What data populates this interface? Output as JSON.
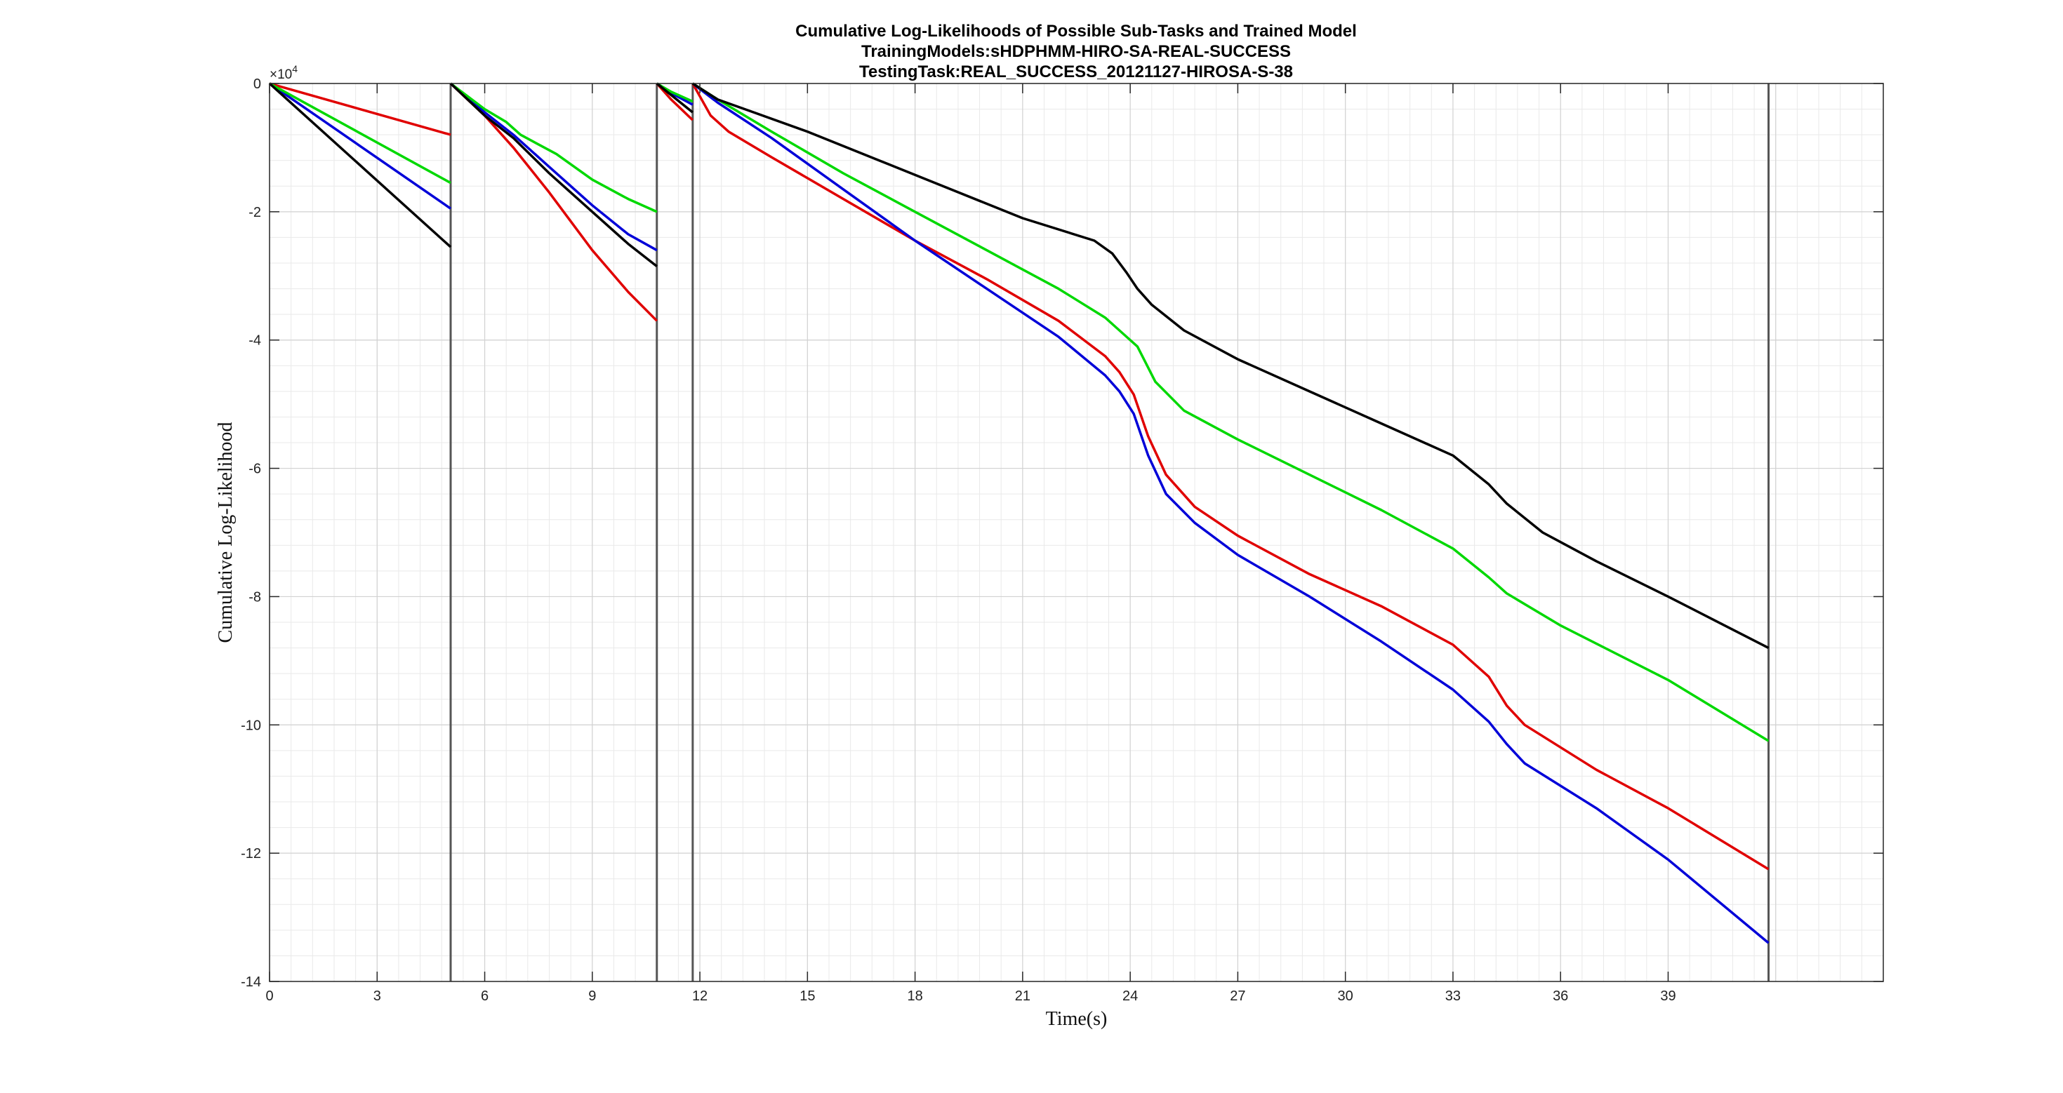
{
  "chart_data": {
    "type": "line",
    "title": [
      "Cumulative Log-Likelihoods of Possible Sub-Tasks and Trained Model",
      "TrainingModels:sHDPHMM-HIRO-SA-REAL-SUCCESS",
      "TestingTask:REAL_SUCCESS_20121127-HIROSA-S-38"
    ],
    "xlabel": "Time(s)",
    "ylabel": "Cumulative Log-Likelihood",
    "y_exponent_label": "×10",
    "y_exponent_power": "4",
    "xlim": [
      0,
      45
    ],
    "ylim": [
      -140000,
      0
    ],
    "x_ticks": [
      0,
      3,
      6,
      9,
      12,
      15,
      18,
      21,
      24,
      27,
      30,
      33,
      36,
      39
    ],
    "x_tick_labels": [
      "0",
      "3",
      "6",
      "9",
      "12",
      "15",
      "18",
      "21",
      "24",
      "27",
      "30",
      "33",
      "36",
      "39"
    ],
    "y_ticks": [
      0,
      -20000,
      -40000,
      -60000,
      -80000,
      -100000,
      -120000,
      -140000
    ],
    "y_tick_labels": [
      "0",
      "-2",
      "-4",
      "-6",
      "-8",
      "-10",
      "-12",
      "-14"
    ],
    "grid": true,
    "minor_grid": true,
    "vertical_markers": [
      5.05,
      10.8,
      11.8,
      41.8
    ],
    "series": [
      {
        "color": "#e00000",
        "segments": [
          [
            [
              0,
              0
            ],
            [
              5.05,
              -8000
            ]
          ],
          [
            [
              5.05,
              0
            ],
            [
              6.0,
              -5000
            ],
            [
              6.8,
              -10000
            ],
            [
              7.8,
              -17000
            ],
            [
              9.0,
              -26000
            ],
            [
              10.0,
              -32500
            ],
            [
              10.8,
              -37000
            ]
          ],
          [
            [
              10.8,
              0
            ],
            [
              11.2,
              -2500
            ],
            [
              11.8,
              -5700
            ]
          ],
          [
            [
              11.8,
              0
            ],
            [
              12.3,
              -5000
            ],
            [
              12.8,
              -7500
            ],
            [
              14.0,
              -11500
            ],
            [
              16.0,
              -18000
            ],
            [
              18.0,
              -24500
            ],
            [
              20.0,
              -30500
            ],
            [
              22.0,
              -37000
            ],
            [
              23.3,
              -42500
            ],
            [
              23.7,
              -45000
            ],
            [
              24.1,
              -48500
            ],
            [
              24.5,
              -55000
            ],
            [
              25.0,
              -61000
            ],
            [
              25.8,
              -66000
            ],
            [
              27.0,
              -70500
            ],
            [
              29.0,
              -76500
            ],
            [
              31.0,
              -81500
            ],
            [
              33.0,
              -87500
            ],
            [
              34.0,
              -92500
            ],
            [
              34.5,
              -97000
            ],
            [
              35.0,
              -100000
            ],
            [
              37.0,
              -107000
            ],
            [
              39.0,
              -113000
            ],
            [
              41.8,
              -122500
            ]
          ]
        ]
      },
      {
        "color": "#0000d8",
        "segments": [
          [
            [
              0,
              0
            ],
            [
              5.05,
              -19500
            ]
          ],
          [
            [
              5.05,
              0
            ],
            [
              6.0,
              -4500
            ],
            [
              6.8,
              -8000
            ],
            [
              7.8,
              -13000
            ],
            [
              9.0,
              -19000
            ],
            [
              10.0,
              -23500
            ],
            [
              10.8,
              -26000
            ]
          ],
          [
            [
              10.8,
              0
            ],
            [
              11.2,
              -1500
            ],
            [
              11.8,
              -3300
            ]
          ],
          [
            [
              11.8,
              0
            ],
            [
              12.5,
              -3000
            ],
            [
              14.0,
              -8500
            ],
            [
              16.0,
              -16500
            ],
            [
              18.0,
              -24500
            ],
            [
              20.0,
              -32000
            ],
            [
              22.0,
              -39500
            ],
            [
              23.3,
              -45500
            ],
            [
              23.7,
              -48000
            ],
            [
              24.1,
              -51500
            ],
            [
              24.5,
              -58000
            ],
            [
              25.0,
              -64000
            ],
            [
              25.8,
              -68500
            ],
            [
              27.0,
              -73500
            ],
            [
              29.0,
              -80000
            ],
            [
              31.0,
              -87000
            ],
            [
              33.0,
              -94500
            ],
            [
              34.0,
              -99500
            ],
            [
              34.5,
              -103000
            ],
            [
              35.0,
              -106000
            ],
            [
              37.0,
              -113000
            ],
            [
              39.0,
              -121000
            ],
            [
              41.8,
              -134000
            ]
          ]
        ]
      },
      {
        "color": "#00d800",
        "segments": [
          [
            [
              0,
              0
            ],
            [
              5.05,
              -15500
            ]
          ],
          [
            [
              5.05,
              0
            ],
            [
              6.0,
              -4000
            ],
            [
              6.6,
              -6000
            ],
            [
              7.0,
              -8000
            ],
            [
              8.0,
              -11000
            ],
            [
              9.0,
              -15000
            ],
            [
              10.0,
              -18000
            ],
            [
              10.8,
              -20000
            ]
          ],
          [
            [
              10.8,
              0
            ],
            [
              11.2,
              -1300
            ],
            [
              11.8,
              -2800
            ]
          ],
          [
            [
              11.8,
              0
            ],
            [
              12.5,
              -2500
            ],
            [
              14.0,
              -7500
            ],
            [
              16.0,
              -14000
            ],
            [
              18.0,
              -20000
            ],
            [
              20.0,
              -26000
            ],
            [
              22.0,
              -32000
            ],
            [
              23.3,
              -36500
            ],
            [
              23.7,
              -38500
            ],
            [
              24.2,
              -41000
            ],
            [
              24.7,
              -46500
            ],
            [
              25.5,
              -51000
            ],
            [
              27.0,
              -55500
            ],
            [
              29.0,
              -61000
            ],
            [
              31.0,
              -66500
            ],
            [
              33.0,
              -72500
            ],
            [
              34.0,
              -77000
            ],
            [
              34.5,
              -79500
            ],
            [
              36.0,
              -84500
            ],
            [
              39.0,
              -93000
            ],
            [
              41.8,
              -102500
            ]
          ]
        ]
      },
      {
        "color": "#000000",
        "segments": [
          [
            [
              0,
              0
            ],
            [
              5.05,
              -25500
            ]
          ],
          [
            [
              5.05,
              0
            ],
            [
              6.0,
              -5000
            ],
            [
              6.8,
              -8500
            ],
            [
              7.8,
              -14000
            ],
            [
              9.0,
              -20000
            ],
            [
              10.0,
              -25000
            ],
            [
              10.8,
              -28500
            ]
          ],
          [
            [
              10.8,
              0
            ],
            [
              11.2,
              -1800
            ],
            [
              11.8,
              -4500
            ]
          ],
          [
            [
              11.8,
              0
            ],
            [
              12.5,
              -2500
            ],
            [
              13.5,
              -4500
            ],
            [
              15.0,
              -7500
            ],
            [
              17.0,
              -12000
            ],
            [
              19.0,
              -16500
            ],
            [
              21.0,
              -21000
            ],
            [
              23.0,
              -24500
            ],
            [
              23.5,
              -26500
            ],
            [
              23.9,
              -29500
            ],
            [
              24.2,
              -32000
            ],
            [
              24.6,
              -34500
            ],
            [
              25.5,
              -38500
            ],
            [
              27.0,
              -43000
            ],
            [
              29.0,
              -48000
            ],
            [
              31.0,
              -53000
            ],
            [
              33.0,
              -58000
            ],
            [
              34.0,
              -62500
            ],
            [
              34.5,
              -65500
            ],
            [
              35.5,
              -70000
            ],
            [
              37.0,
              -74500
            ],
            [
              39.0,
              -80000
            ],
            [
              41.8,
              -88000
            ]
          ]
        ]
      }
    ]
  }
}
